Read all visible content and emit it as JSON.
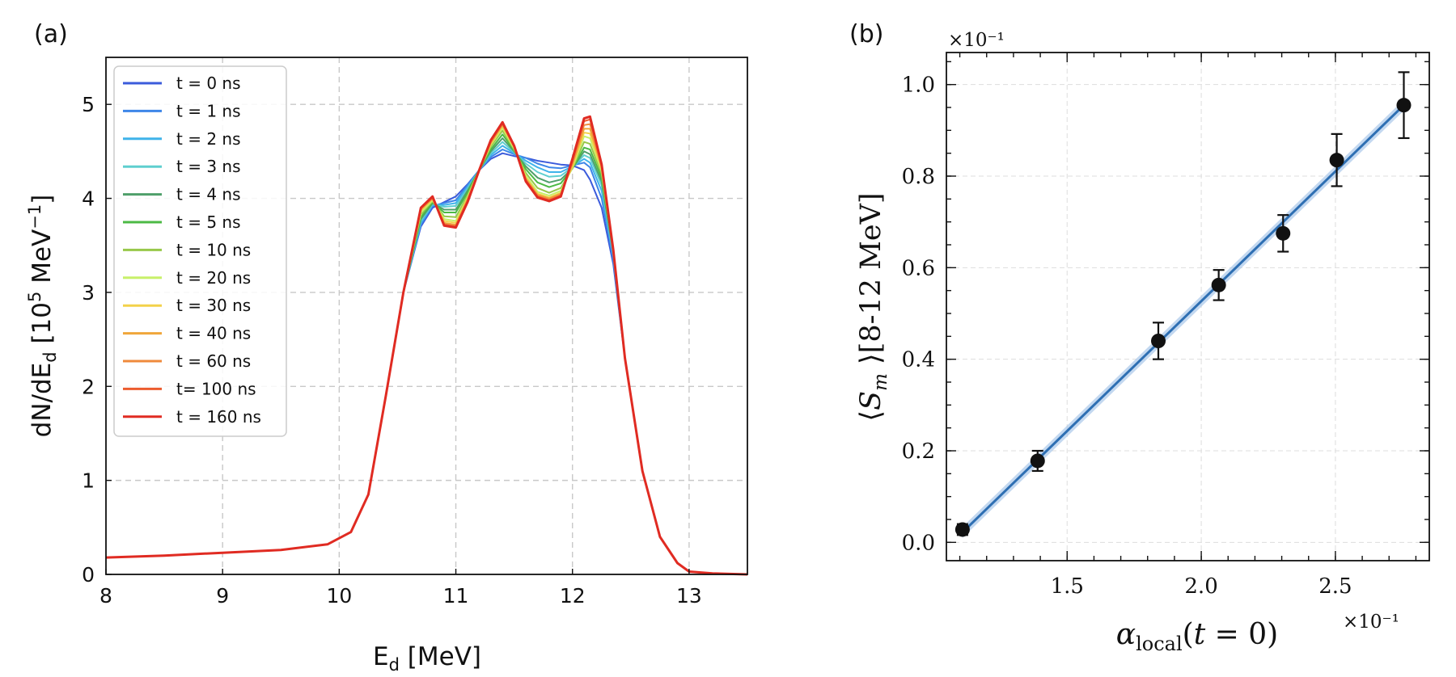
{
  "panel_a": {
    "label": "(a)",
    "colors": [
      "#3b5bdb",
      "#3d86e8",
      "#3fb3ea",
      "#5fcfcf",
      "#4f9f6a",
      "#4cba45",
      "#98c84a",
      "#c8f06a",
      "#f3d24a",
      "#f0a63a",
      "#ef8a3c",
      "#ec5b2e",
      "#e02b22"
    ]
  },
  "panel_b": {
    "label": "(b)",
    "y_multiplier": "×10⁻¹",
    "x_multiplier": "×10⁻¹",
    "line_color": "#2e6fb3",
    "band_color": "#a9c8ea"
  },
  "chart_data": [
    {
      "type": "line",
      "title": "",
      "xlabel": "E_d [MeV]",
      "ylabel": "dN/dE_d [10^5 MeV^-1]",
      "xlim": [
        8,
        13.5
      ],
      "ylim": [
        0,
        5.5
      ],
      "xticks": [
        8,
        9,
        10,
        11,
        12,
        13
      ],
      "yticks": [
        0,
        1,
        2,
        3,
        4,
        5
      ],
      "grid": true,
      "legend_position": "top-left",
      "x": [
        8.0,
        8.5,
        9.0,
        9.5,
        9.9,
        10.1,
        10.25,
        10.4,
        10.55,
        10.7,
        10.8,
        10.9,
        11.0,
        11.1,
        11.2,
        11.3,
        11.4,
        11.5,
        11.6,
        11.7,
        11.8,
        11.9,
        12.0,
        12.1,
        12.15,
        12.25,
        12.35,
        12.45,
        12.6,
        12.75,
        12.9,
        13.0,
        13.2,
        13.5
      ],
      "series": [
        {
          "name": "t = 0 ns",
          "values": [
            0.18,
            0.2,
            0.23,
            0.26,
            0.32,
            0.45,
            0.85,
            1.9,
            3.0,
            3.7,
            3.9,
            3.96,
            4.02,
            4.15,
            4.3,
            4.42,
            4.48,
            4.45,
            4.43,
            4.4,
            4.38,
            4.36,
            4.35,
            4.3,
            4.2,
            3.9,
            3.3,
            2.3,
            1.1,
            0.4,
            0.12,
            0.03,
            0.01,
            0.0
          ]
        },
        {
          "name": "t = 1 ns",
          "values": [
            0.18,
            0.2,
            0.23,
            0.26,
            0.32,
            0.45,
            0.85,
            1.9,
            3.0,
            3.72,
            3.92,
            3.95,
            3.98,
            4.14,
            4.3,
            4.44,
            4.52,
            4.47,
            4.43,
            4.37,
            4.33,
            4.32,
            4.35,
            4.38,
            4.33,
            4.0,
            3.35,
            2.3,
            1.1,
            0.4,
            0.12,
            0.03,
            0.01,
            0.0
          ]
        },
        {
          "name": "t = 2 ns",
          "values": [
            0.18,
            0.2,
            0.23,
            0.26,
            0.32,
            0.45,
            0.85,
            1.9,
            3.0,
            3.74,
            3.93,
            3.93,
            3.95,
            4.12,
            4.3,
            4.46,
            4.56,
            4.48,
            4.4,
            4.33,
            4.28,
            4.28,
            4.34,
            4.42,
            4.38,
            4.08,
            3.38,
            2.3,
            1.1,
            0.4,
            0.12,
            0.03,
            0.01,
            0.0
          ]
        },
        {
          "name": "t = 3 ns",
          "values": [
            0.18,
            0.2,
            0.23,
            0.26,
            0.32,
            0.45,
            0.85,
            1.9,
            3.0,
            3.76,
            3.94,
            3.91,
            3.92,
            4.1,
            4.3,
            4.48,
            4.6,
            4.49,
            4.37,
            4.28,
            4.23,
            4.24,
            4.33,
            4.46,
            4.43,
            4.14,
            3.4,
            2.3,
            1.1,
            0.4,
            0.12,
            0.03,
            0.01,
            0.0
          ]
        },
        {
          "name": "t = 4 ns",
          "values": [
            0.18,
            0.2,
            0.23,
            0.26,
            0.32,
            0.45,
            0.85,
            1.9,
            3.0,
            3.78,
            3.95,
            3.88,
            3.88,
            4.08,
            4.3,
            4.5,
            4.64,
            4.5,
            4.34,
            4.22,
            4.17,
            4.2,
            4.32,
            4.5,
            4.47,
            4.18,
            3.42,
            2.3,
            1.1,
            0.4,
            0.12,
            0.03,
            0.01,
            0.0
          ]
        },
        {
          "name": "t = 5 ns",
          "values": [
            0.18,
            0.2,
            0.23,
            0.26,
            0.32,
            0.45,
            0.85,
            1.9,
            3.0,
            3.8,
            3.96,
            3.85,
            3.85,
            4.06,
            4.3,
            4.52,
            4.68,
            4.51,
            4.31,
            4.17,
            4.12,
            4.16,
            4.32,
            4.54,
            4.52,
            4.22,
            3.44,
            2.3,
            1.1,
            0.4,
            0.12,
            0.03,
            0.01,
            0.0
          ]
        },
        {
          "name": "t = 10 ns",
          "values": [
            0.18,
            0.2,
            0.23,
            0.26,
            0.32,
            0.45,
            0.85,
            1.9,
            3.0,
            3.83,
            3.97,
            3.81,
            3.8,
            4.03,
            4.3,
            4.55,
            4.72,
            4.52,
            4.27,
            4.11,
            4.06,
            4.11,
            4.32,
            4.6,
            4.58,
            4.26,
            3.45,
            2.3,
            1.1,
            0.4,
            0.12,
            0.03,
            0.01,
            0.0
          ]
        },
        {
          "name": "t = 20 ns",
          "values": [
            0.18,
            0.2,
            0.23,
            0.26,
            0.32,
            0.45,
            0.85,
            1.9,
            3.0,
            3.85,
            3.98,
            3.78,
            3.76,
            4.01,
            4.3,
            4.57,
            4.75,
            4.53,
            4.24,
            4.07,
            4.03,
            4.08,
            4.33,
            4.66,
            4.64,
            4.29,
            3.45,
            2.3,
            1.1,
            0.4,
            0.12,
            0.03,
            0.01,
            0.0
          ]
        },
        {
          "name": "t = 30 ns",
          "values": [
            0.18,
            0.2,
            0.23,
            0.26,
            0.32,
            0.45,
            0.85,
            1.9,
            3.0,
            3.87,
            3.99,
            3.76,
            3.74,
            4.0,
            4.3,
            4.58,
            4.77,
            4.54,
            4.22,
            4.05,
            4.01,
            4.06,
            4.34,
            4.7,
            4.69,
            4.31,
            3.45,
            2.3,
            1.1,
            0.4,
            0.12,
            0.03,
            0.01,
            0.0
          ]
        },
        {
          "name": "t = 40 ns",
          "values": [
            0.18,
            0.2,
            0.23,
            0.26,
            0.32,
            0.45,
            0.85,
            1.9,
            3.0,
            3.88,
            4.0,
            3.74,
            3.72,
            3.99,
            4.3,
            4.59,
            4.78,
            4.55,
            4.21,
            4.04,
            4.0,
            4.05,
            4.36,
            4.74,
            4.74,
            4.33,
            3.45,
            2.3,
            1.1,
            0.4,
            0.12,
            0.03,
            0.01,
            0.0
          ]
        },
        {
          "name": "t = 60 ns",
          "values": [
            0.18,
            0.2,
            0.23,
            0.26,
            0.32,
            0.45,
            0.85,
            1.9,
            3.0,
            3.89,
            4.0,
            3.73,
            3.71,
            3.98,
            4.3,
            4.6,
            4.79,
            4.55,
            4.2,
            4.03,
            3.99,
            4.04,
            4.38,
            4.78,
            4.79,
            4.34,
            3.45,
            2.3,
            1.1,
            0.4,
            0.12,
            0.03,
            0.01,
            0.0
          ]
        },
        {
          "name": "t= 100 ns",
          "values": [
            0.18,
            0.2,
            0.23,
            0.26,
            0.32,
            0.45,
            0.85,
            1.9,
            3.0,
            3.9,
            4.01,
            3.72,
            3.7,
            3.97,
            4.3,
            4.61,
            4.8,
            4.56,
            4.19,
            4.02,
            3.98,
            4.03,
            4.4,
            4.82,
            4.84,
            4.35,
            3.45,
            2.3,
            1.1,
            0.4,
            0.12,
            0.03,
            0.01,
            0.0
          ]
        },
        {
          "name": "t = 160 ns",
          "values": [
            0.18,
            0.2,
            0.23,
            0.26,
            0.32,
            0.45,
            0.85,
            1.9,
            3.0,
            3.9,
            4.02,
            3.71,
            3.69,
            3.96,
            4.3,
            4.62,
            4.81,
            4.56,
            4.18,
            4.01,
            3.97,
            4.02,
            4.42,
            4.85,
            4.87,
            4.36,
            3.45,
            2.3,
            1.1,
            0.4,
            0.12,
            0.03,
            0.01,
            0.0
          ]
        }
      ]
    },
    {
      "type": "scatter",
      "title": "",
      "xlabel": "α_local(t = 0)",
      "ylabel": "⟨S_m ⟩[8-12 MeV]",
      "xlim": [
        1.05,
        2.85
      ],
      "ylim": [
        -0.04,
        1.07
      ],
      "xticks": [
        "1.5",
        "2.0",
        "2.5"
      ],
      "yticks": [
        "0.0",
        "0.2",
        "0.4",
        "0.6",
        "0.8",
        "1.0"
      ],
      "grid": true,
      "points": [
        {
          "x": 1.11,
          "y": 0.028,
          "err": 0.012
        },
        {
          "x": 1.39,
          "y": 0.178,
          "err": 0.022
        },
        {
          "x": 1.84,
          "y": 0.44,
          "err": 0.04
        },
        {
          "x": 2.065,
          "y": 0.562,
          "err": 0.033
        },
        {
          "x": 2.305,
          "y": 0.675,
          "err": 0.04
        },
        {
          "x": 2.505,
          "y": 0.835,
          "err": 0.057
        },
        {
          "x": 2.755,
          "y": 0.955,
          "err": 0.072
        }
      ],
      "fit_line": {
        "x": [
          1.11,
          2.755
        ],
        "y": [
          0.022,
          0.955
        ]
      }
    }
  ]
}
